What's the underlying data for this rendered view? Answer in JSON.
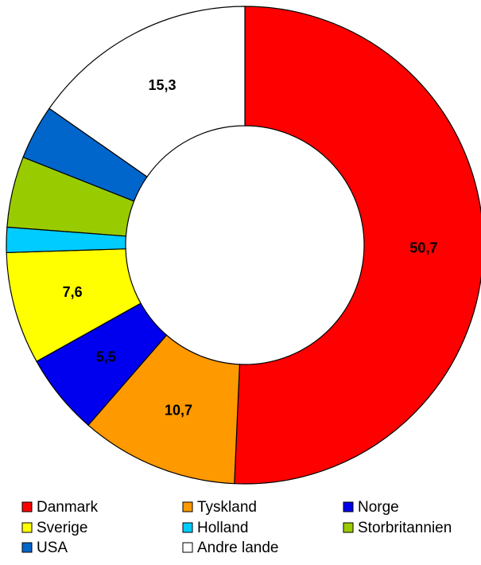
{
  "chart_data": {
    "type": "donut",
    "categories": [
      "Danmark",
      "Tyskland",
      "Norge",
      "Sverige",
      "Holland",
      "Storbritannien",
      "USA",
      "Andre lande"
    ],
    "values": [
      50.7,
      10.7,
      5.5,
      7.6,
      1.7,
      4.8,
      3.7,
      15.3
    ],
    "value_labels": [
      "50,7",
      "10,7",
      "5,5",
      "7,6",
      null,
      null,
      null,
      "15,3"
    ],
    "colors": [
      "#ff0000",
      "#ff9900",
      "#0000ee",
      "#ffff00",
      "#00ccff",
      "#99cc00",
      "#0066cc",
      "#ffffff"
    ],
    "legend": "bottom"
  }
}
